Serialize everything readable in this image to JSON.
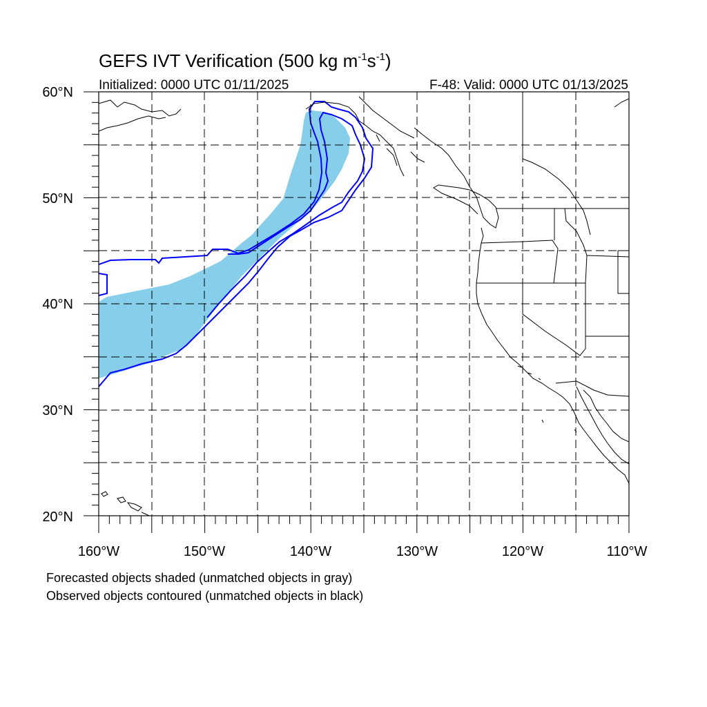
{
  "header": {
    "title_main": "GEFS IVT Verification (500 kg m",
    "title_exp1": "-1",
    "title_mid": "s",
    "title_exp2": "-1",
    "title_end": ")",
    "initialized": "Initialized: 0000 UTC 01/11/2025",
    "valid": "F-48: Valid: 0000 UTC 01/13/2025"
  },
  "map": {
    "lon_range": [
      -160,
      -110
    ],
    "lat_range": [
      20,
      60
    ],
    "lat_labels": [
      "20°N",
      "30°N",
      "40°N",
      "50°N",
      "60°N"
    ],
    "lon_labels": [
      "160°W",
      "150°W",
      "140°W",
      "130°W",
      "120°W",
      "110°W"
    ],
    "grid_style": "dashed, every 5 degrees"
  },
  "legend": {
    "line1": "Forecasted objects shaded (unmatched objects in gray)",
    "line2": "Observed objects contoured (unmatched objects in black)"
  },
  "colors": {
    "forecast_fill": "#87ceeb",
    "observed_contour": "#0000ff",
    "coastline": "#000000"
  }
}
